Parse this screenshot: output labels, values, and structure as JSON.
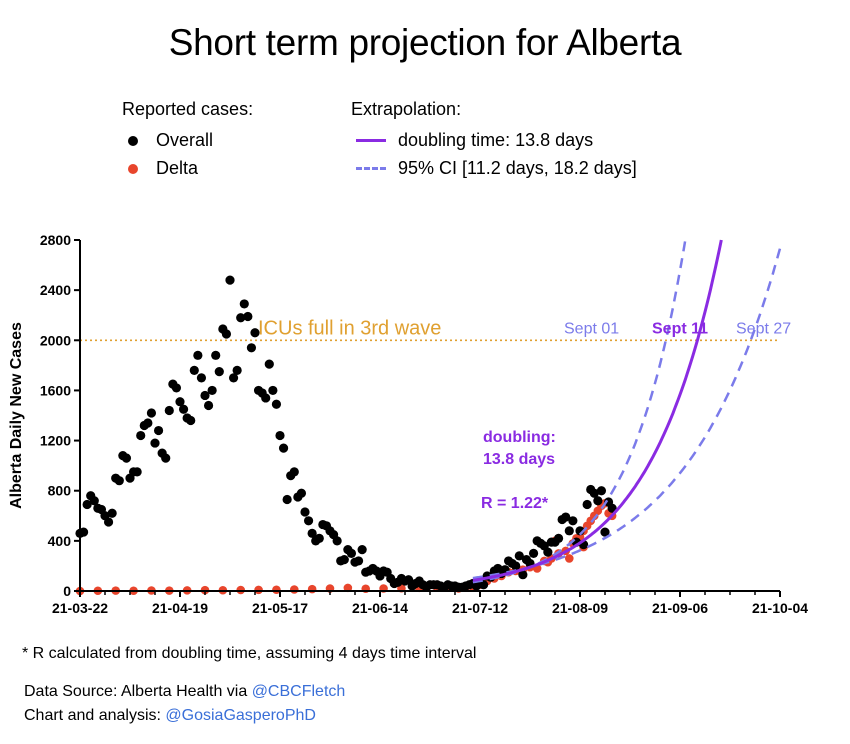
{
  "title": "Short term projection for Alberta",
  "legend": {
    "reported_heading": "Reported cases:",
    "extrapolation_heading": "Extrapolation:",
    "overall": "Overall",
    "delta": "Delta",
    "doubling": "doubling time: 13.8 days",
    "ci": "95% CI [11.2 days, 18.2 days]"
  },
  "colors": {
    "overall": "#000000",
    "delta": "#e8452c",
    "doubling": "#8a2be2",
    "ci": "#7b7bea",
    "icu_line": "#e0a030"
  },
  "footnote": "* R calculated from doubling time, assuming 4 days time interval",
  "source": {
    "prefix": "Data Source: Alberta Health via ",
    "handle": "@CBCFletch"
  },
  "credit": {
    "prefix": "Chart and analysis: ",
    "handle": "@GosiaGasperoPhD"
  },
  "chart_data": {
    "type": "scatter",
    "ylabel": "Alberta Daily New Cases",
    "ylim": [
      0,
      2800
    ],
    "y_ticks": [
      0,
      400,
      800,
      1200,
      1600,
      2000,
      2400,
      2800
    ],
    "x_tick_labels": [
      "21-03-22",
      "21-04-19",
      "21-05-17",
      "21-06-14",
      "21-07-12",
      "21-08-09",
      "21-09-06",
      "21-10-04"
    ],
    "x_range_days": [
      0,
      196
    ],
    "x_axis_note": "x values are days since 21-03-22",
    "icu_threshold": 2000,
    "annotations": {
      "icu": "ICUs full in 3rd wave",
      "sept01": "Sept 01",
      "sept11": "Sept 11",
      "sept27": "Sept 27",
      "doubling_line1": "doubling:",
      "doubling_line2": "13.8 days",
      "r_value": "R = 1.22*"
    },
    "overall": [
      [
        0,
        460
      ],
      [
        1,
        470
      ],
      [
        2,
        690
      ],
      [
        3,
        760
      ],
      [
        4,
        720
      ],
      [
        5,
        660
      ],
      [
        6,
        650
      ],
      [
        7,
        600
      ],
      [
        8,
        550
      ],
      [
        9,
        620
      ],
      [
        10,
        900
      ],
      [
        11,
        880
      ],
      [
        12,
        1080
      ],
      [
        13,
        1060
      ],
      [
        14,
        900
      ],
      [
        15,
        950
      ],
      [
        16,
        950
      ],
      [
        17,
        1240
      ],
      [
        18,
        1320
      ],
      [
        19,
        1340
      ],
      [
        20,
        1420
      ],
      [
        21,
        1180
      ],
      [
        22,
        1280
      ],
      [
        23,
        1100
      ],
      [
        24,
        1060
      ],
      [
        25,
        1440
      ],
      [
        26,
        1650
      ],
      [
        27,
        1620
      ],
      [
        28,
        1510
      ],
      [
        29,
        1450
      ],
      [
        30,
        1380
      ],
      [
        31,
        1360
      ],
      [
        32,
        1760
      ],
      [
        33,
        1880
      ],
      [
        34,
        1700
      ],
      [
        35,
        1560
      ],
      [
        36,
        1480
      ],
      [
        37,
        1600
      ],
      [
        38,
        1880
      ],
      [
        39,
        1750
      ],
      [
        40,
        2090
      ],
      [
        41,
        2050
      ],
      [
        42,
        2480
      ],
      [
        43,
        1700
      ],
      [
        44,
        1760
      ],
      [
        45,
        2180
      ],
      [
        46,
        2290
      ],
      [
        47,
        2190
      ],
      [
        48,
        1940
      ],
      [
        49,
        2060
      ],
      [
        50,
        1600
      ],
      [
        51,
        1580
      ],
      [
        52,
        1540
      ],
      [
        53,
        1810
      ],
      [
        54,
        1600
      ],
      [
        55,
        1490
      ],
      [
        56,
        1240
      ],
      [
        57,
        1140
      ],
      [
        58,
        730
      ],
      [
        59,
        920
      ],
      [
        60,
        950
      ],
      [
        61,
        750
      ],
      [
        62,
        780
      ],
      [
        63,
        630
      ],
      [
        64,
        560
      ],
      [
        65,
        460
      ],
      [
        66,
        400
      ],
      [
        67,
        420
      ],
      [
        68,
        530
      ],
      [
        69,
        520
      ],
      [
        70,
        480
      ],
      [
        71,
        450
      ],
      [
        72,
        400
      ],
      [
        73,
        240
      ],
      [
        74,
        250
      ],
      [
        75,
        330
      ],
      [
        76,
        300
      ],
      [
        77,
        230
      ],
      [
        78,
        240
      ],
      [
        79,
        330
      ],
      [
        80,
        150
      ],
      [
        81,
        160
      ],
      [
        82,
        180
      ],
      [
        83,
        160
      ],
      [
        84,
        120
      ],
      [
        85,
        160
      ],
      [
        86,
        150
      ],
      [
        87,
        100
      ],
      [
        88,
        60
      ],
      [
        89,
        70
      ],
      [
        90,
        100
      ],
      [
        91,
        80
      ],
      [
        92,
        90
      ],
      [
        93,
        40
      ],
      [
        94,
        60
      ],
      [
        95,
        80
      ],
      [
        96,
        50
      ],
      [
        97,
        30
      ],
      [
        98,
        50
      ],
      [
        99,
        50
      ],
      [
        100,
        50
      ],
      [
        101,
        40
      ],
      [
        102,
        30
      ],
      [
        103,
        50
      ],
      [
        104,
        40
      ],
      [
        105,
        40
      ],
      [
        106,
        30
      ],
      [
        107,
        30
      ],
      [
        108,
        40
      ],
      [
        109,
        50
      ],
      [
        110,
        60
      ],
      [
        111,
        40
      ],
      [
        112,
        80
      ],
      [
        113,
        50
      ],
      [
        114,
        120
      ],
      [
        115,
        110
      ],
      [
        116,
        160
      ],
      [
        117,
        180
      ],
      [
        118,
        140
      ],
      [
        119,
        170
      ],
      [
        120,
        240
      ],
      [
        121,
        220
      ],
      [
        122,
        200
      ],
      [
        123,
        280
      ],
      [
        124,
        130
      ],
      [
        125,
        250
      ],
      [
        126,
        220
      ],
      [
        127,
        300
      ],
      [
        128,
        400
      ],
      [
        129,
        380
      ],
      [
        130,
        360
      ],
      [
        131,
        310
      ],
      [
        132,
        390
      ],
      [
        133,
        390
      ],
      [
        134,
        420
      ],
      [
        135,
        570
      ],
      [
        136,
        590
      ],
      [
        137,
        480
      ],
      [
        138,
        560
      ],
      [
        139,
        390
      ],
      [
        140,
        480
      ],
      [
        141,
        370
      ],
      [
        142,
        690
      ],
      [
        143,
        810
      ],
      [
        144,
        780
      ],
      [
        145,
        720
      ],
      [
        146,
        800
      ],
      [
        147,
        470
      ],
      [
        148,
        710
      ],
      [
        149,
        660
      ]
    ],
    "delta": [
      [
        0,
        0
      ],
      [
        5,
        2
      ],
      [
        10,
        3
      ],
      [
        15,
        2
      ],
      [
        20,
        4
      ],
      [
        25,
        3
      ],
      [
        30,
        5
      ],
      [
        35,
        7
      ],
      [
        40,
        6
      ],
      [
        45,
        8
      ],
      [
        50,
        9
      ],
      [
        55,
        10
      ],
      [
        60,
        12
      ],
      [
        65,
        15
      ],
      [
        70,
        20
      ],
      [
        75,
        25
      ],
      [
        80,
        18
      ],
      [
        85,
        20
      ],
      [
        90,
        22
      ],
      [
        95,
        25
      ],
      [
        100,
        28
      ],
      [
        104,
        30
      ],
      [
        106,
        20
      ],
      [
        108,
        30
      ],
      [
        110,
        35
      ],
      [
        112,
        50
      ],
      [
        114,
        80
      ],
      [
        116,
        100
      ],
      [
        118,
        120
      ],
      [
        120,
        150
      ],
      [
        122,
        160
      ],
      [
        124,
        170
      ],
      [
        126,
        190
      ],
      [
        128,
        180
      ],
      [
        130,
        240
      ],
      [
        132,
        260
      ],
      [
        134,
        300
      ],
      [
        136,
        320
      ],
      [
        137,
        260
      ],
      [
        138,
        380
      ],
      [
        139,
        420
      ],
      [
        140,
        430
      ],
      [
        141,
        350
      ],
      [
        142,
        520
      ],
      [
        143,
        560
      ],
      [
        144,
        600
      ],
      [
        145,
        640
      ],
      [
        146,
        680
      ],
      [
        147,
        700
      ],
      [
        148,
        620
      ],
      [
        149,
        600
      ],
      [
        141,
        480
      ],
      [
        133,
        400
      ],
      [
        131,
        230
      ]
    ],
    "doubling_days": 13.8,
    "ci_days": [
      11.2,
      18.2
    ],
    "fit_anchor": [
      126,
      190
    ]
  }
}
